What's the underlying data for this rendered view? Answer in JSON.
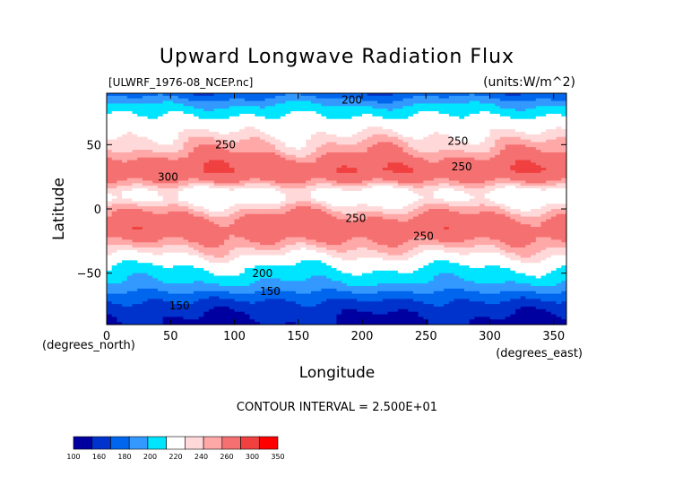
{
  "chart_data": {
    "type": "heatmap",
    "title": "Upward Longwave Radiation Flux",
    "subtitle_left": "[ULWRF_1976-08_NCEP.nc]",
    "subtitle_right": "(units:W/m^2)",
    "xlabel": "Longitude",
    "ylabel": "Latitude",
    "x_unit_note": "(degrees_east)",
    "y_unit_note": "(degrees_north)",
    "xlim": [
      0,
      360
    ],
    "ylim": [
      -90,
      90
    ],
    "x_ticks": [
      0,
      50,
      100,
      150,
      200,
      250,
      300,
      350
    ],
    "y_ticks": [
      -50,
      0,
      50
    ],
    "footer": "CONTOUR INTERVAL = 2.500E+01",
    "colorbar": {
      "labels": [
        "100",
        "160",
        "180",
        "200",
        "220",
        "240",
        "260",
        "300",
        "350"
      ],
      "bounds": [
        100,
        140,
        160,
        180,
        200,
        220,
        240,
        250,
        260,
        280,
        300,
        350
      ],
      "colors": [
        "#0000a0",
        "#0033cc",
        "#0066ee",
        "#3399ff",
        "#00e5ff",
        "#ffffff",
        "#ffd9d9",
        "#ffa8a8",
        "#f57070",
        "#f04040",
        "#ff0000"
      ]
    },
    "contour_labels": [
      {
        "text": "200",
        "lon": 192,
        "lat": 82
      },
      {
        "text": "250",
        "lon": 93,
        "lat": 47
      },
      {
        "text": "300",
        "lon": 48,
        "lat": 22
      },
      {
        "text": "250",
        "lon": 275,
        "lat": 50
      },
      {
        "text": "250",
        "lon": 278,
        "lat": 30
      },
      {
        "text": "250",
        "lon": 195,
        "lat": -10
      },
      {
        "text": "250",
        "lon": 248,
        "lat": -24
      },
      {
        "text": "200",
        "lon": 122,
        "lat": -53
      },
      {
        "text": "150",
        "lon": 128,
        "lat": -67
      },
      {
        "text": "150",
        "lon": 57,
        "lat": -78
      }
    ],
    "zonal_profile": [
      {
        "lat": 90,
        "value": 165
      },
      {
        "lat": 82,
        "value": 195
      },
      {
        "lat": 75,
        "value": 215
      },
      {
        "lat": 68,
        "value": 228
      },
      {
        "lat": 60,
        "value": 238
      },
      {
        "lat": 52,
        "value": 248
      },
      {
        "lat": 45,
        "value": 256
      },
      {
        "lat": 38,
        "value": 268
      },
      {
        "lat": 30,
        "value": 278
      },
      {
        "lat": 22,
        "value": 262
      },
      {
        "lat": 14,
        "value": 236
      },
      {
        "lat": 8,
        "value": 232
      },
      {
        "lat": 0,
        "value": 250
      },
      {
        "lat": -8,
        "value": 266
      },
      {
        "lat": -16,
        "value": 272
      },
      {
        "lat": -24,
        "value": 262
      },
      {
        "lat": -32,
        "value": 248
      },
      {
        "lat": -40,
        "value": 232
      },
      {
        "lat": -48,
        "value": 216
      },
      {
        "lat": -56,
        "value": 203
      },
      {
        "lat": -62,
        "value": 188
      },
      {
        "lat": -68,
        "value": 168
      },
      {
        "lat": -76,
        "value": 150
      },
      {
        "lat": -84,
        "value": 140
      },
      {
        "lat": -90,
        "value": 135
      }
    ]
  }
}
